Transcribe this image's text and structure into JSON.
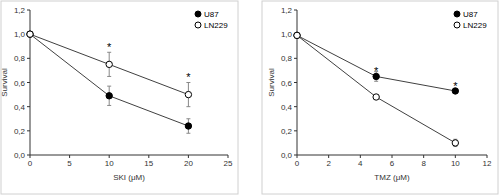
{
  "chart_data": [
    {
      "type": "line",
      "x_label": "SKI (μM)",
      "y_label": "Survival",
      "x": [
        0,
        10,
        20
      ],
      "series": [
        {
          "name": "U87",
          "color": "#000000",
          "marker": "filled",
          "values": [
            1.0,
            0.49,
            0.24
          ],
          "errors": [
            0,
            0.08,
            0.06
          ]
        },
        {
          "name": "LN229",
          "color": "#000000",
          "marker": "open",
          "values": [
            1.0,
            0.75,
            0.5
          ],
          "errors": [
            0,
            0.1,
            0.1
          ]
        }
      ],
      "xlim": [
        0,
        25
      ],
      "xticks": [
        0,
        5,
        10,
        15,
        20,
        25
      ],
      "ylim": [
        0,
        1.2
      ],
      "yticks": [
        {
          "value": 0,
          "label": "0,0"
        },
        {
          "value": 0.2,
          "label": "0,2"
        },
        {
          "value": 0.4,
          "label": "0,4"
        },
        {
          "value": 0.6,
          "label": "0,6"
        },
        {
          "value": 0.8,
          "label": "0,8"
        },
        {
          "value": 1.0,
          "label": "1,0"
        },
        {
          "value": 1.2,
          "label": "1,2"
        }
      ],
      "legend": "upper right",
      "annotations": [
        {
          "text": "*",
          "x": 10,
          "y": 0.9
        },
        {
          "text": "*",
          "x": 20,
          "y": 0.65
        }
      ]
    },
    {
      "type": "line",
      "x_label": "TMZ (μM)",
      "y_label": "Survival",
      "x": [
        0,
        5,
        10
      ],
      "series": [
        {
          "name": "U87",
          "color": "#000000",
          "marker": "filled",
          "values": [
            0.99,
            0.65,
            0.53
          ],
          "errors": [
            0,
            0.04,
            0.01
          ]
        },
        {
          "name": "LN229",
          "color": "#000000",
          "marker": "open",
          "values": [
            0.99,
            0.48,
            0.1
          ],
          "errors": [
            0,
            0.01,
            0.03
          ]
        }
      ],
      "xlim": [
        0,
        12
      ],
      "xticks": [
        0,
        2,
        4,
        6,
        8,
        10,
        12
      ],
      "ylim": [
        0,
        1.2
      ],
      "yticks": [
        {
          "value": 0,
          "label": "0,0"
        },
        {
          "value": 0.2,
          "label": "0,2"
        },
        {
          "value": 0.4,
          "label": "0,4"
        },
        {
          "value": 0.6,
          "label": "0,6"
        },
        {
          "value": 0.8,
          "label": "0,8"
        },
        {
          "value": 1.0,
          "label": "1,0"
        },
        {
          "value": 1.2,
          "label": "1,2"
        }
      ],
      "legend": "upper right",
      "annotations": [
        {
          "text": "*",
          "x": 5,
          "y": 0.7
        },
        {
          "text": "*",
          "x": 10,
          "y": 0.58
        }
      ]
    }
  ]
}
